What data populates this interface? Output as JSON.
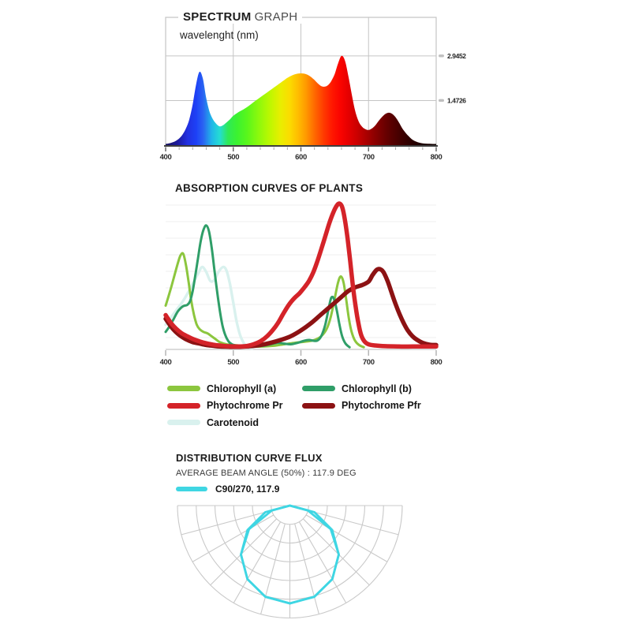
{
  "page": {
    "background": "#ffffff"
  },
  "spectrum_section": {
    "title_bold": "SPECTRUM",
    "title_rest": "GRAPH",
    "axis_note": "wavelenght (nm)"
  },
  "absorption_section": {
    "title": "ABSORPTION CURVES OF PLANTS",
    "legend": [
      {
        "label": "Chlorophyll (a)",
        "color": "#8cc63e"
      },
      {
        "label": "Chlorophyll (b)",
        "color": "#2f9e68"
      },
      {
        "label": "Phytochrome Pr",
        "color": "#d42329"
      },
      {
        "label": "Phytochrome Pfr",
        "color": "#8c1213"
      },
      {
        "label": "Carotenoid",
        "color": "#d9f1ee"
      }
    ]
  },
  "distribution_section": {
    "title": "DISTRIBUTION CURVE FLUX",
    "subtitle": "AVERAGE BEAM ANGLE (50%) : 117.9 DEG",
    "legend_label": "C90/270, 117.9",
    "legend_color": "#3fd6e3"
  },
  "chart_data": [
    {
      "type": "area",
      "title": "SPECTRUM GRAPH",
      "xlabel": "wavelenght (nm)",
      "x_ticks": [
        400,
        500,
        600,
        700,
        800
      ],
      "x_minor_tick_step": 20,
      "xlim": [
        400,
        800
      ],
      "ylim": [
        0,
        4.2
      ],
      "y_ticks": [
        {
          "label": "2.9452",
          "value": 2.9452
        },
        {
          "label": "1.4726",
          "value": 1.4726
        }
      ],
      "x_start": 400,
      "x_step": 5,
      "values": [
        0.04,
        0.06,
        0.09,
        0.14,
        0.22,
        0.35,
        0.55,
        0.85,
        1.35,
        2.0,
        2.42,
        2.2,
        1.55,
        1.1,
        0.85,
        0.7,
        0.62,
        0.66,
        0.75,
        0.85,
        0.97,
        1.05,
        1.12,
        1.18,
        1.25,
        1.33,
        1.42,
        1.5,
        1.58,
        1.66,
        1.74,
        1.82,
        1.9,
        1.98,
        2.06,
        2.14,
        2.22,
        2.28,
        2.33,
        2.36,
        2.37,
        2.36,
        2.32,
        2.25,
        2.15,
        2.04,
        1.95,
        1.93,
        1.98,
        2.12,
        2.35,
        2.7,
        2.945,
        2.8,
        2.3,
        1.7,
        1.15,
        0.8,
        0.62,
        0.53,
        0.5,
        0.55,
        0.65,
        0.8,
        0.93,
        1.03,
        1.07,
        1.03,
        0.92,
        0.75,
        0.55,
        0.4,
        0.28,
        0.18,
        0.12,
        0.08,
        0.06,
        0.05,
        0.045,
        0.04,
        0.04
      ],
      "gradient_stops": [
        {
          "nm": 400,
          "color": "#17125e"
        },
        {
          "nm": 418,
          "color": "#1c1a9e"
        },
        {
          "nm": 432,
          "color": "#2230e0"
        },
        {
          "nm": 445,
          "color": "#1d41f7"
        },
        {
          "nm": 455,
          "color": "#2a62f2"
        },
        {
          "nm": 468,
          "color": "#20b6e8"
        },
        {
          "nm": 480,
          "color": "#24ddd3"
        },
        {
          "nm": 492,
          "color": "#2ee957"
        },
        {
          "nm": 505,
          "color": "#3bf231"
        },
        {
          "nm": 520,
          "color": "#58f61c"
        },
        {
          "nm": 538,
          "color": "#8ef90c"
        },
        {
          "nm": 555,
          "color": "#c0f700"
        },
        {
          "nm": 570,
          "color": "#e9ee00"
        },
        {
          "nm": 583,
          "color": "#fbdc00"
        },
        {
          "nm": 596,
          "color": "#ffbc00"
        },
        {
          "nm": 608,
          "color": "#ff9800"
        },
        {
          "nm": 620,
          "color": "#ff6a00"
        },
        {
          "nm": 633,
          "color": "#ff3c00"
        },
        {
          "nm": 646,
          "color": "#ff1800"
        },
        {
          "nm": 658,
          "color": "#fa0400"
        },
        {
          "nm": 670,
          "color": "#e60000"
        },
        {
          "nm": 684,
          "color": "#c90000"
        },
        {
          "nm": 698,
          "color": "#a70000"
        },
        {
          "nm": 712,
          "color": "#860000"
        },
        {
          "nm": 726,
          "color": "#670000"
        },
        {
          "nm": 742,
          "color": "#4a0000"
        },
        {
          "nm": 758,
          "color": "#310000"
        },
        {
          "nm": 775,
          "color": "#1f0000"
        },
        {
          "nm": 800,
          "color": "#100000"
        }
      ]
    },
    {
      "type": "line",
      "title": "ABSORPTION CURVES OF PLANTS",
      "x_ticks": [
        400,
        500,
        600,
        700,
        800
      ],
      "xlim": [
        400,
        800
      ],
      "ylim": [
        0,
        1
      ],
      "grid": "horizontal-faint",
      "series": [
        {
          "name": "Carotenoid",
          "color": "#d9f1ee",
          "width": 3.4,
          "points": [
            [
              400,
              0.17
            ],
            [
              408,
              0.22
            ],
            [
              416,
              0.27
            ],
            [
              424,
              0.32
            ],
            [
              432,
              0.38
            ],
            [
              440,
              0.45
            ],
            [
              448,
              0.52
            ],
            [
              454,
              0.565
            ],
            [
              460,
              0.53
            ],
            [
              466,
              0.47
            ],
            [
              472,
              0.475
            ],
            [
              478,
              0.53
            ],
            [
              485,
              0.565
            ],
            [
              490,
              0.54
            ],
            [
              495,
              0.45
            ],
            [
              500,
              0.32
            ],
            [
              505,
              0.19
            ],
            [
              510,
              0.1
            ],
            [
              516,
              0.04
            ],
            [
              522,
              0.015
            ],
            [
              528,
              0.005
            ]
          ]
        },
        {
          "name": "Chlorophyll (a)",
          "color": "#8cc63e",
          "width": 3,
          "points": [
            [
              400,
              0.3
            ],
            [
              406,
              0.39
            ],
            [
              412,
              0.49
            ],
            [
              418,
              0.59
            ],
            [
              422,
              0.645
            ],
            [
              426,
              0.655
            ],
            [
              430,
              0.58
            ],
            [
              434,
              0.46
            ],
            [
              438,
              0.33
            ],
            [
              442,
              0.235
            ],
            [
              446,
              0.17
            ],
            [
              450,
              0.14
            ],
            [
              456,
              0.12
            ],
            [
              462,
              0.11
            ],
            [
              468,
              0.09
            ],
            [
              474,
              0.07
            ],
            [
              480,
              0.05
            ],
            [
              490,
              0.035
            ],
            [
              500,
              0.03
            ],
            [
              515,
              0.025
            ],
            [
              530,
              0.02
            ],
            [
              545,
              0.02
            ],
            [
              560,
              0.025
            ],
            [
              575,
              0.035
            ],
            [
              590,
              0.045
            ],
            [
              600,
              0.05
            ],
            [
              610,
              0.055
            ],
            [
              620,
              0.065
            ],
            [
              630,
              0.09
            ],
            [
              638,
              0.14
            ],
            [
              644,
              0.22
            ],
            [
              650,
              0.35
            ],
            [
              655,
              0.46
            ],
            [
              659,
              0.5
            ],
            [
              663,
              0.46
            ],
            [
              667,
              0.34
            ],
            [
              671,
              0.21
            ],
            [
              675,
              0.12
            ],
            [
              680,
              0.06
            ],
            [
              686,
              0.03
            ],
            [
              693,
              0.015
            ]
          ]
        },
        {
          "name": "Chlorophyll (b)",
          "color": "#2f9e68",
          "width": 3,
          "points": [
            [
              400,
              0.12
            ],
            [
              406,
              0.16
            ],
            [
              412,
              0.21
            ],
            [
              418,
              0.26
            ],
            [
              424,
              0.29
            ],
            [
              428,
              0.3
            ],
            [
              432,
              0.305
            ],
            [
              436,
              0.33
            ],
            [
              440,
              0.4
            ],
            [
              444,
              0.51
            ],
            [
              448,
              0.63
            ],
            [
              452,
              0.745
            ],
            [
              456,
              0.82
            ],
            [
              460,
              0.85
            ],
            [
              464,
              0.81
            ],
            [
              468,
              0.7
            ],
            [
              472,
              0.55
            ],
            [
              476,
              0.4
            ],
            [
              480,
              0.27
            ],
            [
              484,
              0.165
            ],
            [
              488,
              0.1
            ],
            [
              493,
              0.055
            ],
            [
              498,
              0.035
            ],
            [
              505,
              0.025
            ],
            [
              515,
              0.02
            ],
            [
              530,
              0.02
            ],
            [
              545,
              0.025
            ],
            [
              555,
              0.035
            ],
            [
              565,
              0.045
            ],
            [
              575,
              0.04
            ],
            [
              585,
              0.035
            ],
            [
              595,
              0.045
            ],
            [
              605,
              0.06
            ],
            [
              612,
              0.065
            ],
            [
              618,
              0.06
            ],
            [
              624,
              0.06
            ],
            [
              630,
              0.09
            ],
            [
              636,
              0.17
            ],
            [
              641,
              0.28
            ],
            [
              645,
              0.355
            ],
            [
              649,
              0.345
            ],
            [
              653,
              0.27
            ],
            [
              657,
              0.17
            ],
            [
              661,
              0.09
            ],
            [
              666,
              0.04
            ],
            [
              672,
              0.015
            ]
          ]
        },
        {
          "name": "Phytochrome Pfr",
          "color": "#8c1213",
          "width": 5.5,
          "points": [
            [
              400,
              0.21
            ],
            [
              410,
              0.145
            ],
            [
              420,
              0.1
            ],
            [
              430,
              0.07
            ],
            [
              440,
              0.05
            ],
            [
              450,
              0.04
            ],
            [
              460,
              0.03
            ],
            [
              470,
              0.025
            ],
            [
              480,
              0.02
            ],
            [
              495,
              0.018
            ],
            [
              510,
              0.018
            ],
            [
              525,
              0.022
            ],
            [
              540,
              0.03
            ],
            [
              555,
              0.045
            ],
            [
              570,
              0.065
            ],
            [
              585,
              0.09
            ],
            [
              600,
              0.13
            ],
            [
              615,
              0.18
            ],
            [
              630,
              0.24
            ],
            [
              645,
              0.3
            ],
            [
              660,
              0.36
            ],
            [
              670,
              0.4
            ],
            [
              680,
              0.425
            ],
            [
              690,
              0.44
            ],
            [
              700,
              0.465
            ],
            [
              706,
              0.51
            ],
            [
              712,
              0.545
            ],
            [
              717,
              0.55
            ],
            [
              722,
              0.53
            ],
            [
              728,
              0.47
            ],
            [
              734,
              0.39
            ],
            [
              740,
              0.31
            ],
            [
              746,
              0.24
            ],
            [
              752,
              0.18
            ],
            [
              758,
              0.13
            ],
            [
              765,
              0.09
            ],
            [
              772,
              0.065
            ],
            [
              780,
              0.045
            ],
            [
              790,
              0.033
            ],
            [
              800,
              0.03
            ]
          ]
        },
        {
          "name": "Phytochrome Pr",
          "color": "#d42329",
          "width": 5.5,
          "points": [
            [
              400,
              0.235
            ],
            [
              408,
              0.18
            ],
            [
              416,
              0.14
            ],
            [
              424,
              0.11
            ],
            [
              432,
              0.09
            ],
            [
              440,
              0.072
            ],
            [
              450,
              0.055
            ],
            [
              460,
              0.042
            ],
            [
              470,
              0.033
            ],
            [
              480,
              0.027
            ],
            [
              492,
              0.022
            ],
            [
              505,
              0.02
            ],
            [
              518,
              0.022
            ],
            [
              530,
              0.035
            ],
            [
              540,
              0.055
            ],
            [
              550,
              0.09
            ],
            [
              558,
              0.13
            ],
            [
              566,
              0.18
            ],
            [
              574,
              0.245
            ],
            [
              582,
              0.305
            ],
            [
              590,
              0.35
            ],
            [
              598,
              0.385
            ],
            [
              606,
              0.43
            ],
            [
              612,
              0.47
            ],
            [
              618,
              0.525
            ],
            [
              624,
              0.6
            ],
            [
              630,
              0.685
            ],
            [
              636,
              0.775
            ],
            [
              642,
              0.865
            ],
            [
              648,
              0.94
            ],
            [
              653,
              0.985
            ],
            [
              657,
              1.0
            ],
            [
              661,
              0.975
            ],
            [
              665,
              0.89
            ],
            [
              669,
              0.76
            ],
            [
              673,
              0.6
            ],
            [
              677,
              0.43
            ],
            [
              681,
              0.29
            ],
            [
              685,
              0.18
            ],
            [
              689,
              0.1
            ],
            [
              694,
              0.055
            ],
            [
              700,
              0.035
            ],
            [
              710,
              0.027
            ],
            [
              725,
              0.022
            ],
            [
              745,
              0.02
            ],
            [
              765,
              0.02
            ],
            [
              785,
              0.02
            ],
            [
              800,
              0.02
            ]
          ]
        }
      ]
    },
    {
      "type": "polar",
      "title": "DISTRIBUTION CURVE FLUX",
      "subtitle": "AVERAGE BEAM ANGLE (50%) : 117.9 DEG",
      "beam_angle_deg": 117.9,
      "planes": "C90/270",
      "color": "#3fd6e3",
      "grid": {
        "rings": 6,
        "spoke_step_deg": 15,
        "color": "#c9c9c9"
      },
      "curves": [
        {
          "name": "C90",
          "gamma_deg": [
            0,
            15,
            30,
            45,
            60,
            75,
            90
          ],
          "r_rel": [
            0.87,
            0.84,
            0.755,
            0.615,
            0.435,
            0.225,
            0.0
          ]
        },
        {
          "name": "C270",
          "gamma_deg": [
            0,
            15,
            30,
            45,
            60,
            75,
            90
          ],
          "r_rel": [
            0.87,
            0.84,
            0.755,
            0.615,
            0.42,
            0.165,
            0.0
          ]
        }
      ],
      "model": "r(gamma) ~ r_peak x cos(gamma)"
    }
  ]
}
